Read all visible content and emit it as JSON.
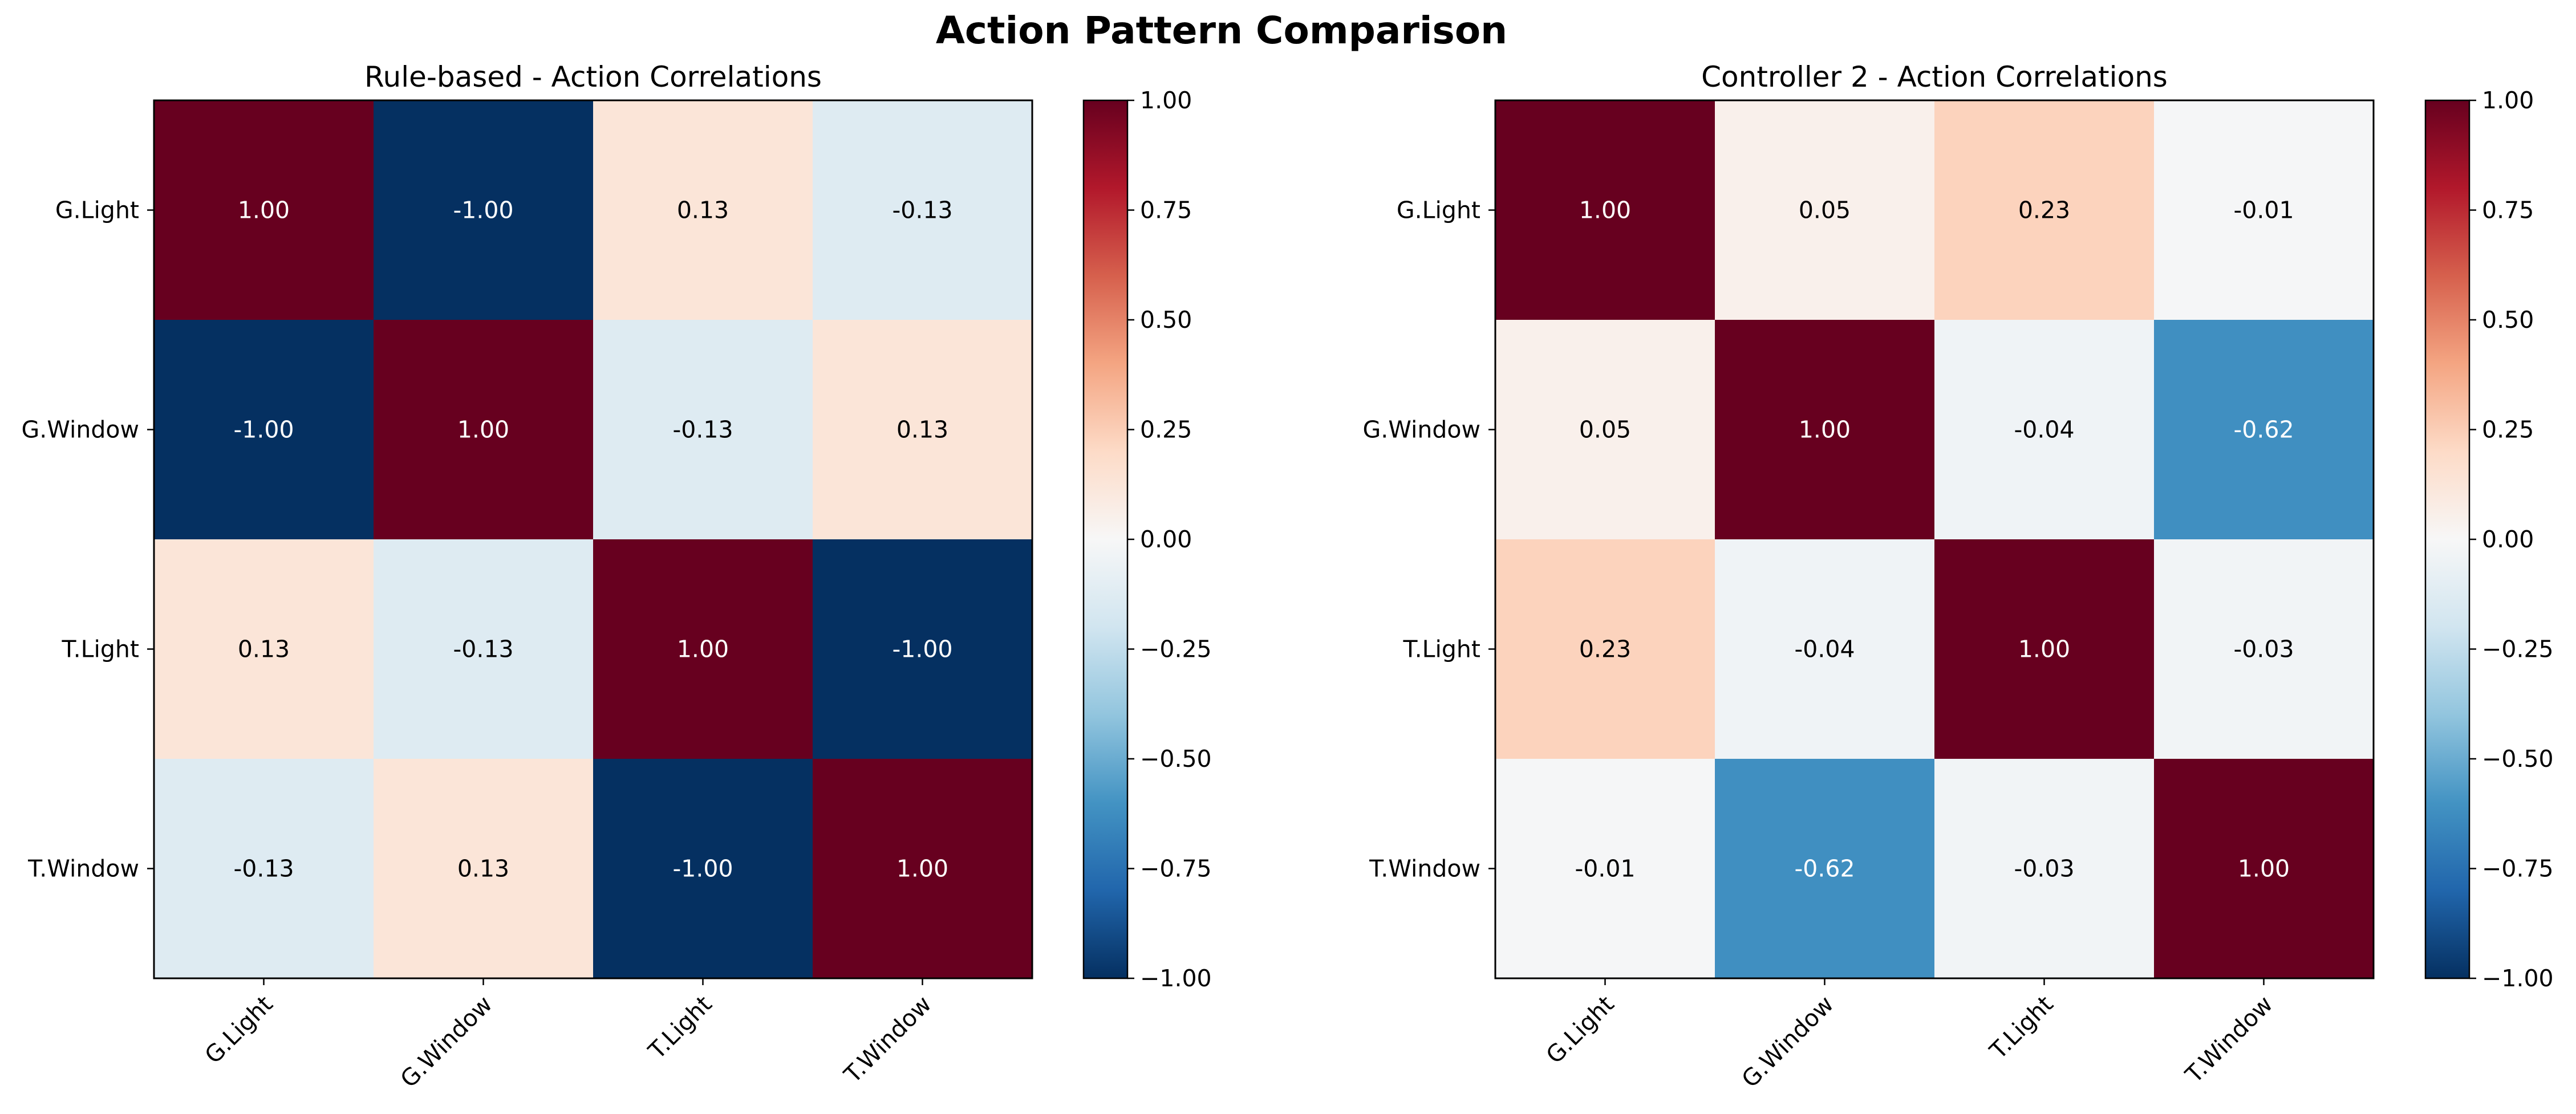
{
  "title": "Action Pattern Comparison",
  "chart_data": [
    {
      "type": "heatmap",
      "title": "Rule-based - Action Correlations",
      "x": [
        "G.Light",
        "G.Window",
        "T.Light",
        "T.Window"
      ],
      "y": [
        "G.Light",
        "G.Window",
        "T.Light",
        "T.Window"
      ],
      "values": [
        [
          1.0,
          -1.0,
          0.13,
          -0.13
        ],
        [
          -1.0,
          1.0,
          -0.13,
          0.13
        ],
        [
          0.13,
          -0.13,
          1.0,
          -1.0
        ],
        [
          -0.13,
          0.13,
          -1.0,
          1.0
        ]
      ],
      "cell_labels": [
        [
          "1.00",
          "-1.00",
          "0.13",
          "-0.13"
        ],
        [
          "-1.00",
          "1.00",
          "-0.13",
          "0.13"
        ],
        [
          "0.13",
          "-0.13",
          "1.00",
          "-1.00"
        ],
        [
          "-0.13",
          "0.13",
          "-1.00",
          "1.00"
        ]
      ],
      "vmin": -1,
      "vmax": 1,
      "colormap": "RdBu_r",
      "colorbar_ticks": [
        "1.00",
        "0.75",
        "0.50",
        "0.25",
        "0.00",
        "−0.25",
        "−0.50",
        "−0.75",
        "−1.00"
      ]
    },
    {
      "type": "heatmap",
      "title": "Controller 2 - Action Correlations",
      "x": [
        "G.Light",
        "G.Window",
        "T.Light",
        "T.Window"
      ],
      "y": [
        "G.Light",
        "G.Window",
        "T.Light",
        "T.Window"
      ],
      "values": [
        [
          1.0,
          0.05,
          0.23,
          -0.01
        ],
        [
          0.05,
          1.0,
          -0.04,
          -0.62
        ],
        [
          0.23,
          -0.04,
          1.0,
          -0.03
        ],
        [
          -0.01,
          -0.62,
          -0.03,
          1.0
        ]
      ],
      "cell_labels": [
        [
          "1.00",
          "0.05",
          "0.23",
          "-0.01"
        ],
        [
          "0.05",
          "1.00",
          "-0.04",
          "-0.62"
        ],
        [
          "0.23",
          "-0.04",
          "1.00",
          "-0.03"
        ],
        [
          "-0.01",
          "-0.62",
          "-0.03",
          "1.00"
        ]
      ],
      "vmin": -1,
      "vmax": 1,
      "colormap": "RdBu_r",
      "colorbar_ticks": [
        "1.00",
        "0.75",
        "0.50",
        "0.25",
        "0.00",
        "−0.25",
        "−0.50",
        "−0.75",
        "−1.00"
      ]
    }
  ]
}
